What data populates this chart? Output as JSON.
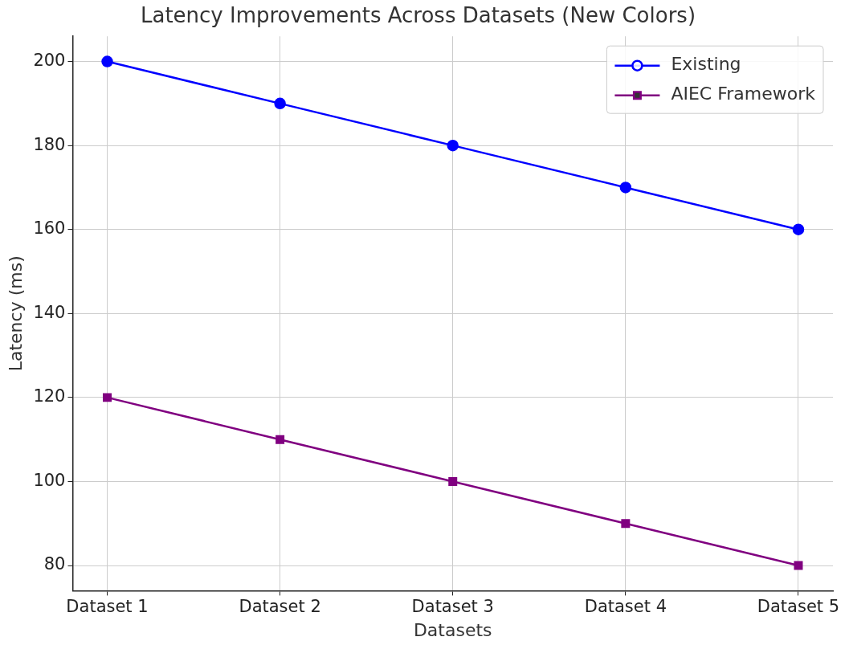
{
  "chart_data": {
    "type": "line",
    "title": "Latency Improvements Across Datasets (New Colors)",
    "xlabel": "Datasets",
    "ylabel": "Latency (ms)",
    "categories": [
      "Dataset 1",
      "Dataset 2",
      "Dataset 3",
      "Dataset 4",
      "Dataset 5"
    ],
    "series": [
      {
        "name": "Existing",
        "color": "#0000ff",
        "marker": "circle",
        "values": [
          200,
          190,
          180,
          170,
          160
        ]
      },
      {
        "name": "AIEC Framework",
        "color": "#800080",
        "marker": "square",
        "values": [
          120,
          110,
          100,
          90,
          80
        ]
      }
    ],
    "ylim": [
      74,
      206
    ],
    "yticks": [
      80,
      100,
      120,
      140,
      160,
      180,
      200
    ],
    "grid": true,
    "legend": "top right",
    "line_style": "solid"
  }
}
